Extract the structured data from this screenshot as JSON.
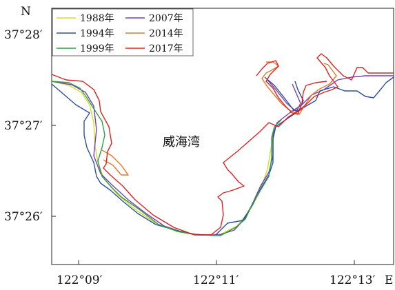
{
  "map": {
    "north_label": "N",
    "east_label": "E",
    "bay_name": "威海湾",
    "latitude_ticks": [
      "37°28′",
      "37°27′",
      "37°26′"
    ],
    "longitude_ticks": [
      "122°09′",
      "122°11′",
      "122°13′"
    ]
  },
  "legend": [
    {
      "key": "y1988",
      "label": "1988年",
      "color": "#d8d830"
    },
    {
      "key": "y2007",
      "label": "2007年",
      "color": "#7a3fb0"
    },
    {
      "key": "y1994",
      "label": "1994年",
      "color": "#2a4fa0"
    },
    {
      "key": "y2014",
      "label": "2014年",
      "color": "#e07828"
    },
    {
      "key": "y1999",
      "label": "1999年",
      "color": "#2aa048"
    },
    {
      "key": "y2017",
      "label": "2017年",
      "color": "#e02020"
    }
  ]
}
